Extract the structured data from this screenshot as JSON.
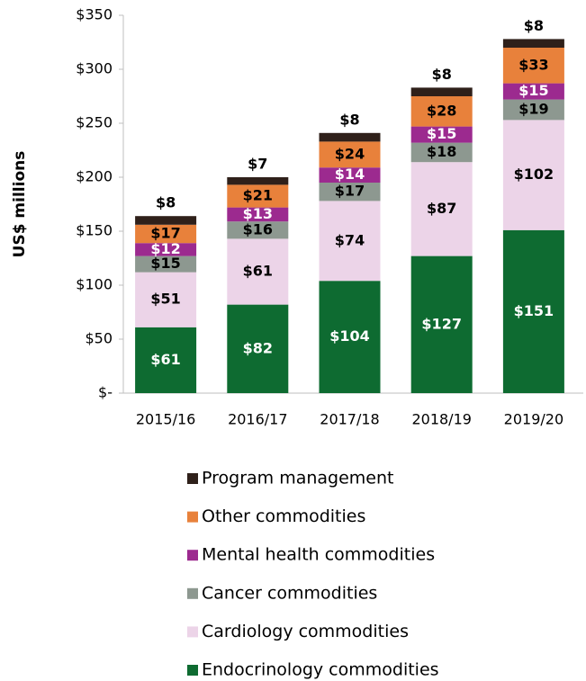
{
  "chart_data": {
    "type": "stacked_bar",
    "y_label": "US$ millions",
    "categories": [
      "2015/16",
      "2016/17",
      "2017/18",
      "2018/19",
      "2019/20"
    ],
    "series": [
      {
        "name": "Endocrinology commodities",
        "color": "#0e6b31",
        "values": [
          61,
          82,
          104,
          127,
          151
        ],
        "value_labels": [
          "$61",
          "$82",
          "$104",
          "$127",
          "$151"
        ]
      },
      {
        "name": "Cardiology commodities",
        "color": "#ecd4e8",
        "values": [
          51,
          61,
          74,
          87,
          102
        ],
        "value_labels": [
          "$51",
          "$61",
          "$74",
          "$87",
          "$102"
        ]
      },
      {
        "name": "Cancer commodities",
        "color": "#8d9890",
        "values": [
          15,
          16,
          17,
          18,
          19
        ],
        "value_labels": [
          "$15",
          "$16",
          "$17",
          "$18",
          "$19"
        ]
      },
      {
        "name": "Mental health commodities",
        "color": "#9c2a8f",
        "values": [
          12,
          13,
          14,
          15,
          15
        ],
        "value_labels": [
          "$12",
          "$13",
          "$14",
          "$15",
          "$15"
        ]
      },
      {
        "name": "Other commodities",
        "color": "#e8813b",
        "values": [
          17,
          21,
          24,
          28,
          33
        ],
        "value_labels": [
          "$17",
          "$21",
          "$24",
          "$28",
          "$33"
        ]
      },
      {
        "name": "Program management",
        "color": "#2f201a",
        "values": [
          8,
          7,
          8,
          8,
          8
        ],
        "value_labels": [
          "$8",
          "$7",
          "$8",
          "$8",
          "$8"
        ]
      }
    ],
    "ylim": [
      0,
      350
    ],
    "yticks": [
      {
        "value": 0,
        "label": "$-"
      },
      {
        "value": 50,
        "label": "$50"
      },
      {
        "value": 100,
        "label": "$100"
      },
      {
        "value": 150,
        "label": "$150"
      },
      {
        "value": 200,
        "label": "$200"
      },
      {
        "value": 250,
        "label": "$250"
      },
      {
        "value": 300,
        "label": "$300"
      },
      {
        "value": 350,
        "label": "$350"
      }
    ],
    "legend": "bottom"
  }
}
